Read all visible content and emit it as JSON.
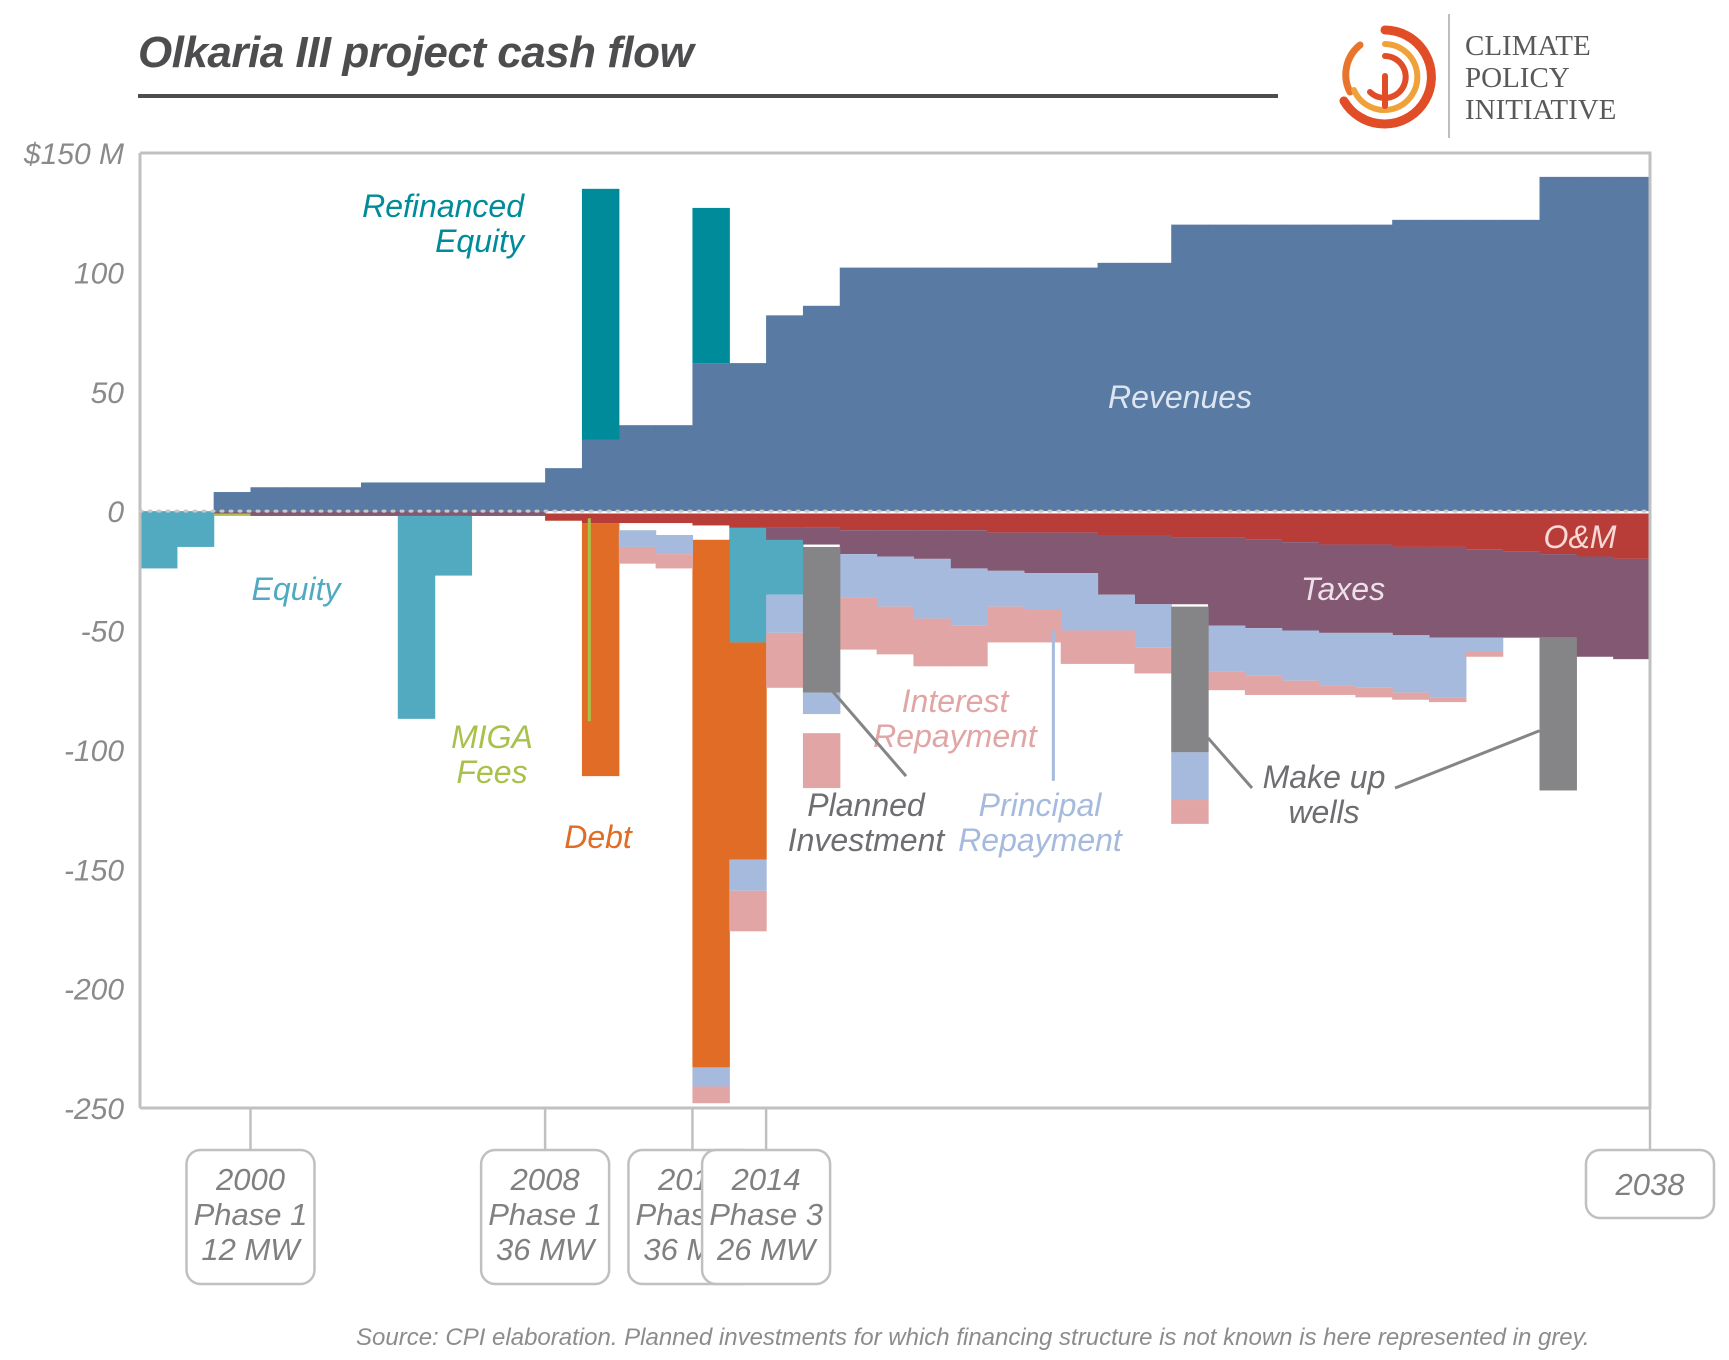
{
  "title": "Olkaria III project cash flow",
  "logo": {
    "lines": [
      "CLIMATE",
      "POLICY",
      "INITIATIVE"
    ]
  },
  "source": "Source: CPI elaboration. Planned investments for which financing structure is not known is here represented in grey.",
  "colors": {
    "revenues": "#587aa3",
    "refinanced_equity": "#008b9a",
    "equity": "#52aac0",
    "miga": "#a8c14a",
    "debt": "#e06c25",
    "om": "#b83c38",
    "taxes": "#825872",
    "principal": "#a6bade",
    "interest": "#e2a5a5",
    "planned": "#858587",
    "zero_line": "#c8c8c8",
    "frame": "#c0c0c0"
  },
  "chart_data": {
    "type": "bar",
    "stacked": true,
    "x_unit": "year",
    "xlim": [
      1997,
      2038
    ],
    "ylim": [
      -250,
      150
    ],
    "y_ticks": [
      150,
      100,
      50,
      0,
      -50,
      -100,
      -150,
      -200,
      -250
    ],
    "y_tick_labels": [
      "$150 M",
      "100",
      "50",
      "0",
      "-50",
      "-100",
      "-150",
      "-200",
      "-250"
    ],
    "x_labels": [
      {
        "x": 2000,
        "lines": [
          "2000",
          "Phase 1",
          "12 MW"
        ]
      },
      {
        "x": 2008,
        "lines": [
          "2008",
          "Phase 1",
          "36 MW"
        ]
      },
      {
        "x": 2012,
        "lines": [
          "2012",
          "Phase 2",
          "36 MW"
        ]
      },
      {
        "x": 2014,
        "lines": [
          "2014",
          "Phase 3",
          "26 MW"
        ]
      },
      {
        "x": 2038,
        "lines": [
          "2038"
        ]
      }
    ],
    "series": [
      {
        "key": "revenues",
        "name": "Revenues",
        "segments": [
          [
            1999,
            2000,
            0,
            8
          ],
          [
            2000,
            2001,
            0,
            10
          ],
          [
            2001,
            2002,
            0,
            10
          ],
          [
            2002,
            2003,
            0,
            10
          ],
          [
            2003,
            2004,
            0,
            12
          ],
          [
            2004,
            2005,
            0,
            12
          ],
          [
            2005,
            2006,
            0,
            12
          ],
          [
            2006,
            2007,
            0,
            12
          ],
          [
            2007,
            2008,
            0,
            12
          ],
          [
            2008,
            2009,
            0,
            18
          ],
          [
            2009,
            2010,
            0,
            30
          ],
          [
            2010,
            2011,
            0,
            36
          ],
          [
            2011,
            2012,
            0,
            36
          ],
          [
            2012,
            2013,
            0,
            62
          ],
          [
            2013,
            2014,
            0,
            62
          ],
          [
            2014,
            2015,
            0,
            82
          ],
          [
            2015,
            2016,
            0,
            86
          ],
          [
            2016,
            2017,
            0,
            102
          ],
          [
            2017,
            2018,
            0,
            102
          ],
          [
            2018,
            2019,
            0,
            102
          ],
          [
            2019,
            2020,
            0,
            102
          ],
          [
            2020,
            2021,
            0,
            102
          ],
          [
            2021,
            2022,
            0,
            102
          ],
          [
            2022,
            2023,
            0,
            102
          ],
          [
            2023,
            2024,
            0,
            104
          ],
          [
            2024,
            2025,
            0,
            104
          ],
          [
            2025,
            2026,
            0,
            120
          ],
          [
            2026,
            2027,
            0,
            120
          ],
          [
            2027,
            2028,
            0,
            120
          ],
          [
            2028,
            2029,
            0,
            120
          ],
          [
            2029,
            2030,
            0,
            120
          ],
          [
            2030,
            2031,
            0,
            120
          ],
          [
            2031,
            2032,
            0,
            122
          ],
          [
            2032,
            2033,
            0,
            122
          ],
          [
            2033,
            2034,
            0,
            122
          ],
          [
            2034,
            2035,
            0,
            122
          ],
          [
            2035,
            2036,
            0,
            140
          ],
          [
            2036,
            2037,
            0,
            140
          ],
          [
            2037,
            2038,
            0,
            140
          ]
        ]
      },
      {
        "key": "refinanced_equity",
        "name": "Refinanced Equity",
        "segments": [
          [
            2009,
            2010,
            30,
            135
          ],
          [
            2012,
            2013,
            62,
            127
          ]
        ]
      },
      {
        "key": "equity",
        "name": "Equity",
        "segments": [
          [
            1997,
            1998,
            0,
            -24
          ],
          [
            1998,
            1999,
            0,
            -15
          ],
          [
            2004,
            2005,
            0,
            -87
          ],
          [
            2005,
            2006,
            0,
            -27
          ],
          [
            2013,
            2014,
            -7,
            -55
          ],
          [
            2014,
            2015,
            -7,
            -35
          ]
        ]
      },
      {
        "key": "miga",
        "name": "MIGA Fees",
        "segments": [
          [
            1999,
            2008,
            -1,
            -2
          ],
          [
            2008,
            2012,
            -3,
            -4
          ],
          [
            2016,
            2020,
            -10,
            -11
          ],
          [
            2023,
            2026,
            -11,
            -12
          ],
          [
            2026,
            2028,
            -14,
            -15
          ]
        ]
      },
      {
        "key": "debt",
        "name": "Debt",
        "segments": [
          [
            2009,
            2010,
            -5,
            -111
          ],
          [
            2012,
            2013,
            -12,
            -233
          ],
          [
            2013,
            2014,
            -55,
            -146
          ]
        ]
      },
      {
        "key": "om",
        "name": "O&M",
        "segments": [
          [
            2008,
            2009,
            -1,
            -4
          ],
          [
            2009,
            2010,
            -1,
            -5
          ],
          [
            2010,
            2011,
            -1,
            -5
          ],
          [
            2011,
            2012,
            -1,
            -5
          ],
          [
            2012,
            2013,
            -1,
            -6
          ],
          [
            2013,
            2014,
            -1,
            -7
          ],
          [
            2014,
            2015,
            -1,
            -7
          ],
          [
            2015,
            2016,
            -1,
            -7
          ],
          [
            2016,
            2017,
            -1,
            -8
          ],
          [
            2017,
            2018,
            -1,
            -8
          ],
          [
            2018,
            2019,
            -1,
            -8
          ],
          [
            2019,
            2020,
            -1,
            -8
          ],
          [
            2020,
            2021,
            -1,
            -9
          ],
          [
            2021,
            2022,
            -1,
            -9
          ],
          [
            2022,
            2023,
            -1,
            -9
          ],
          [
            2023,
            2024,
            -1,
            -10
          ],
          [
            2024,
            2025,
            -1,
            -10
          ],
          [
            2025,
            2026,
            -1,
            -11
          ],
          [
            2026,
            2027,
            -1,
            -11
          ],
          [
            2027,
            2028,
            -1,
            -12
          ],
          [
            2028,
            2029,
            -1,
            -13
          ],
          [
            2029,
            2030,
            -1,
            -14
          ],
          [
            2030,
            2031,
            -1,
            -14
          ],
          [
            2031,
            2032,
            -1,
            -15
          ],
          [
            2032,
            2033,
            -1,
            -15
          ],
          [
            2033,
            2034,
            -1,
            -16
          ],
          [
            2034,
            2035,
            -1,
            -17
          ],
          [
            2035,
            2036,
            -1,
            -18
          ],
          [
            2036,
            2037,
            -1,
            -19
          ],
          [
            2037,
            2038,
            -1,
            -20
          ]
        ]
      },
      {
        "key": "taxes",
        "name": "Taxes",
        "segments": [
          [
            1999,
            2000,
            0,
            -1
          ],
          [
            2000,
            2001,
            0,
            -2
          ],
          [
            2001,
            2008,
            0,
            -2
          ],
          [
            2014,
            2015,
            -7,
            -12
          ],
          [
            2015,
            2016,
            -7,
            -14
          ],
          [
            2016,
            2017,
            -8,
            -18
          ],
          [
            2017,
            2018,
            -8,
            -19
          ],
          [
            2018,
            2019,
            -8,
            -20
          ],
          [
            2019,
            2020,
            -8,
            -24
          ],
          [
            2020,
            2021,
            -9,
            -25
          ],
          [
            2021,
            2022,
            -9,
            -26
          ],
          [
            2022,
            2023,
            -9,
            -26
          ],
          [
            2023,
            2024,
            -10,
            -35
          ],
          [
            2024,
            2025,
            -10,
            -39
          ],
          [
            2025,
            2026,
            -11,
            -39
          ],
          [
            2026,
            2027,
            -11,
            -48
          ],
          [
            2027,
            2028,
            -12,
            -49
          ],
          [
            2028,
            2029,
            -13,
            -50
          ],
          [
            2029,
            2030,
            -14,
            -51
          ],
          [
            2030,
            2031,
            -14,
            -51
          ],
          [
            2031,
            2032,
            -15,
            -52
          ],
          [
            2032,
            2033,
            -15,
            -53
          ],
          [
            2033,
            2034,
            -16,
            -53
          ],
          [
            2034,
            2035,
            -17,
            -53
          ],
          [
            2035,
            2036,
            -18,
            -53
          ],
          [
            2036,
            2037,
            -19,
            -61
          ],
          [
            2037,
            2038,
            -20,
            -62
          ]
        ]
      },
      {
        "key": "principal",
        "name": "Principal Repayment",
        "segments": [
          [
            2010,
            2011,
            -8,
            -15
          ],
          [
            2011,
            2012,
            -10,
            -18
          ],
          [
            2012,
            2013,
            -233,
            -241
          ],
          [
            2013,
            2014,
            -146,
            -159
          ],
          [
            2014,
            2015,
            -35,
            -51
          ],
          [
            2015,
            2016,
            -76,
            -85
          ],
          [
            2016,
            2017,
            -18,
            -36
          ],
          [
            2017,
            2018,
            -19,
            -40
          ],
          [
            2018,
            2019,
            -20,
            -45
          ],
          [
            2019,
            2020,
            -24,
            -48
          ],
          [
            2020,
            2021,
            -25,
            -40
          ],
          [
            2021,
            2022,
            -26,
            -41
          ],
          [
            2022,
            2023,
            -26,
            -50
          ],
          [
            2023,
            2024,
            -35,
            -50
          ],
          [
            2024,
            2025,
            -39,
            -57
          ],
          [
            2025,
            2026,
            -101,
            -121
          ],
          [
            2026,
            2027,
            -48,
            -67
          ],
          [
            2027,
            2028,
            -49,
            -69
          ],
          [
            2028,
            2029,
            -50,
            -71
          ],
          [
            2029,
            2030,
            -51,
            -73
          ],
          [
            2030,
            2031,
            -51,
            -74
          ],
          [
            2031,
            2032,
            -52,
            -76
          ],
          [
            2032,
            2033,
            -53,
            -78
          ],
          [
            2033,
            2034,
            -53,
            -59
          ]
        ]
      },
      {
        "key": "interest",
        "name": "Interest Repayment",
        "segments": [
          [
            2010,
            2011,
            -15,
            -22
          ],
          [
            2011,
            2012,
            -18,
            -24
          ],
          [
            2012,
            2013,
            -241,
            -248
          ],
          [
            2013,
            2014,
            -159,
            -176
          ],
          [
            2014,
            2015,
            -51,
            -74
          ],
          [
            2015,
            2016,
            -93,
            -116
          ],
          [
            2016,
            2017,
            -36,
            -58
          ],
          [
            2017,
            2018,
            -40,
            -60
          ],
          [
            2018,
            2019,
            -45,
            -65
          ],
          [
            2019,
            2020,
            -48,
            -65
          ],
          [
            2020,
            2021,
            -40,
            -55
          ],
          [
            2021,
            2022,
            -41,
            -55
          ],
          [
            2022,
            2023,
            -50,
            -64
          ],
          [
            2023,
            2024,
            -50,
            -64
          ],
          [
            2024,
            2025,
            -57,
            -68
          ],
          [
            2025,
            2026,
            -121,
            -131
          ],
          [
            2026,
            2027,
            -67,
            -75
          ],
          [
            2027,
            2028,
            -69,
            -77
          ],
          [
            2028,
            2029,
            -71,
            -77
          ],
          [
            2029,
            2030,
            -73,
            -77
          ],
          [
            2030,
            2031,
            -74,
            -78
          ],
          [
            2031,
            2032,
            -76,
            -79
          ],
          [
            2032,
            2033,
            -78,
            -80
          ],
          [
            2033,
            2034,
            -59,
            -61
          ]
        ]
      },
      {
        "key": "planned",
        "name": "Planned Investment",
        "segments": [
          [
            2015,
            2016,
            -15,
            -76
          ],
          [
            2025,
            2026,
            -40,
            -101
          ],
          [
            2035,
            2036,
            -53,
            -117
          ]
        ]
      }
    ],
    "labels": [
      {
        "key": "revenues",
        "lines": [
          "Revenues"
        ],
        "color": "#dde6f0"
      },
      {
        "key": "refinanced_equity",
        "lines": [
          "Refinanced",
          "Equity"
        ],
        "color": "#008b9a"
      },
      {
        "key": "equity",
        "lines": [
          "Equity"
        ],
        "color": "#52aac0"
      },
      {
        "key": "miga",
        "lines": [
          "MIGA",
          "Fees"
        ],
        "color": "#a8c14a"
      },
      {
        "key": "debt",
        "lines": [
          "Debt"
        ],
        "color": "#e06c25"
      },
      {
        "key": "om",
        "lines": [
          "O&M"
        ],
        "color": "#f8d9d6"
      },
      {
        "key": "taxes",
        "lines": [
          "Taxes"
        ],
        "color": "#ede0e8"
      },
      {
        "key": "interest",
        "lines": [
          "Interest",
          "Repayment"
        ],
        "color": "#e2a5a5"
      },
      {
        "key": "planned",
        "lines": [
          "Planned",
          "Investment"
        ],
        "color": "#6d6e71"
      },
      {
        "key": "principal",
        "lines": [
          "Principal",
          "Repayment"
        ],
        "color": "#a6bade"
      },
      {
        "key": "makeup",
        "lines": [
          "Make up",
          "wells"
        ],
        "color": "#6d6e71"
      }
    ]
  }
}
